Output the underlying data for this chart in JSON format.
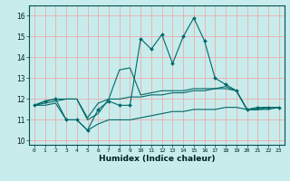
{
  "title": "",
  "xlabel": "Humidex (Indice chaleur)",
  "xlim": [
    -0.5,
    23.5
  ],
  "ylim": [
    9.8,
    16.5
  ],
  "yticks": [
    10,
    11,
    12,
    13,
    14,
    15,
    16
  ],
  "xticks": [
    0,
    1,
    2,
    3,
    4,
    5,
    6,
    7,
    8,
    9,
    10,
    11,
    12,
    13,
    14,
    15,
    16,
    17,
    18,
    19,
    20,
    21,
    22,
    23
  ],
  "bg_color": "#c8ecec",
  "grid_color": "#e8b4b4",
  "line_color": "#006868",
  "series": [
    [
      11.7,
      11.9,
      12.0,
      11.0,
      11.0,
      10.5,
      11.5,
      11.9,
      11.7,
      11.7,
      14.9,
      14.4,
      15.1,
      13.7,
      15.0,
      15.9,
      14.8,
      13.0,
      12.7,
      12.4,
      11.5,
      11.6,
      11.6,
      11.6
    ],
    [
      11.7,
      11.9,
      12.0,
      12.0,
      12.0,
      11.1,
      11.8,
      12.0,
      13.4,
      13.5,
      12.2,
      12.3,
      12.4,
      12.4,
      12.4,
      12.5,
      12.5,
      12.5,
      12.6,
      12.4,
      11.5,
      11.5,
      11.5,
      11.6
    ],
    [
      11.7,
      11.8,
      11.9,
      12.0,
      12.0,
      11.0,
      11.3,
      12.0,
      12.0,
      12.1,
      12.1,
      12.2,
      12.2,
      12.3,
      12.3,
      12.4,
      12.4,
      12.5,
      12.5,
      12.4,
      11.5,
      11.5,
      11.6,
      11.6
    ],
    [
      11.7,
      11.7,
      11.8,
      11.0,
      11.0,
      10.5,
      10.8,
      11.0,
      11.0,
      11.0,
      11.1,
      11.2,
      11.3,
      11.4,
      11.4,
      11.5,
      11.5,
      11.5,
      11.6,
      11.6,
      11.5,
      11.5,
      11.6,
      11.6
    ]
  ],
  "markers": [
    true,
    false,
    false,
    false
  ]
}
